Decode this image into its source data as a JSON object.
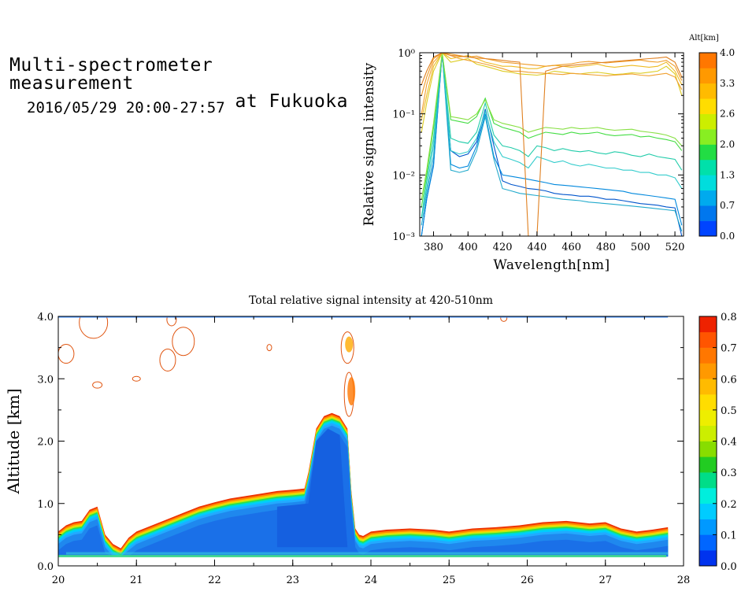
{
  "header": {
    "title_line1": "Multi-spectrometer measurement",
    "title_line2": "at Fukuoka",
    "date_range": "2016/05/29 20:00-27:57"
  },
  "chart_data": [
    {
      "type": "line",
      "xlabel": "Wavelength[nm]",
      "ylabel": "Relative signal intensity",
      "yscale": "log",
      "xlim": [
        372,
        525
      ],
      "ylim": [
        0.001,
        1
      ],
      "xticks": [
        "380",
        "400",
        "420",
        "440",
        "460",
        "480",
        "500",
        "520"
      ],
      "yticks": [
        "10⁻³",
        "10⁻²",
        "10⁻¹",
        "10⁰"
      ],
      "colorbar": {
        "label": "Alt[km]",
        "ticks": [
          "0.0",
          "0.7",
          "1.3",
          "2.0",
          "2.6",
          "3.3",
          "4.0"
        ],
        "colors": [
          "#0044ff",
          "#0077ee",
          "#00aaee",
          "#00dddd",
          "#00e0aa",
          "#22dd44",
          "#88ee22",
          "#ccee00",
          "#ffdd00",
          "#ffbb00",
          "#ff9900",
          "#ff7700"
        ]
      },
      "x": [
        373,
        376,
        380,
        385,
        390,
        395,
        400,
        405,
        410,
        415,
        420,
        425,
        430,
        435,
        440,
        445,
        450,
        455,
        460,
        465,
        470,
        475,
        480,
        485,
        490,
        495,
        500,
        505,
        510,
        515,
        520,
        524
      ],
      "series": [
        {
          "color": "#0055cc",
          "values": [
            0.001,
            0.004,
            0.015,
            1.0,
            0.025,
            0.02,
            0.022,
            0.035,
            0.12,
            0.03,
            0.008,
            0.007,
            0.0065,
            0.006,
            0.0058,
            0.0055,
            0.005,
            0.0048,
            0.0047,
            0.0045,
            0.0045,
            0.0043,
            0.004,
            0.004,
            0.0038,
            0.0036,
            0.0034,
            0.0033,
            0.0032,
            0.003,
            0.0029,
            0.001
          ]
        },
        {
          "color": "#0088dd",
          "values": [
            0.001,
            0.004,
            0.014,
            1.0,
            0.015,
            0.013,
            0.014,
            0.03,
            0.1,
            0.02,
            0.01,
            0.0095,
            0.009,
            0.0085,
            0.008,
            0.0075,
            0.007,
            0.0068,
            0.0066,
            0.0064,
            0.0062,
            0.006,
            0.0058,
            0.0056,
            0.0054,
            0.005,
            0.0048,
            0.0046,
            0.0044,
            0.0042,
            0.004,
            0.0015
          ]
        },
        {
          "color": "#22aacc",
          "values": [
            0.0015,
            0.005,
            0.02,
            1.0,
            0.012,
            0.011,
            0.012,
            0.025,
            0.09,
            0.018,
            0.006,
            0.0055,
            0.005,
            0.0048,
            0.0046,
            0.0044,
            0.0042,
            0.004,
            0.0039,
            0.0038,
            0.0036,
            0.0035,
            0.0034,
            0.0033,
            0.0032,
            0.0031,
            0.003,
            0.0029,
            0.0028,
            0.0027,
            0.0026,
            0.0012
          ]
        },
        {
          "color": "#33cccc",
          "values": [
            0.002,
            0.006,
            0.03,
            1.0,
            0.025,
            0.022,
            0.024,
            0.04,
            0.11,
            0.035,
            0.02,
            0.018,
            0.016,
            0.013,
            0.02,
            0.018,
            0.016,
            0.017,
            0.015,
            0.014,
            0.015,
            0.014,
            0.013,
            0.013,
            0.012,
            0.012,
            0.011,
            0.011,
            0.01,
            0.01,
            0.009,
            0.006
          ]
        },
        {
          "color": "#22ccaa",
          "values": [
            0.002,
            0.008,
            0.04,
            1.0,
            0.04,
            0.035,
            0.033,
            0.05,
            0.15,
            0.045,
            0.03,
            0.028,
            0.025,
            0.02,
            0.03,
            0.028,
            0.025,
            0.027,
            0.025,
            0.024,
            0.025,
            0.023,
            0.022,
            0.024,
            0.023,
            0.021,
            0.02,
            0.022,
            0.02,
            0.019,
            0.018,
            0.012
          ]
        },
        {
          "color": "#44dd44",
          "values": [
            0.003,
            0.01,
            0.06,
            1.0,
            0.08,
            0.075,
            0.07,
            0.09,
            0.18,
            0.07,
            0.06,
            0.055,
            0.05,
            0.04,
            0.045,
            0.05,
            0.048,
            0.046,
            0.05,
            0.047,
            0.048,
            0.05,
            0.046,
            0.044,
            0.045,
            0.046,
            0.042,
            0.043,
            0.04,
            0.038,
            0.035,
            0.025
          ]
        },
        {
          "color": "#88e044",
          "values": [
            0.004,
            0.012,
            0.07,
            1.0,
            0.09,
            0.085,
            0.08,
            0.1,
            0.17,
            0.08,
            0.07,
            0.065,
            0.06,
            0.05,
            0.055,
            0.06,
            0.058,
            0.056,
            0.06,
            0.057,
            0.058,
            0.06,
            0.056,
            0.054,
            0.055,
            0.056,
            0.052,
            0.05,
            0.048,
            0.045,
            0.04,
            0.03
          ]
        },
        {
          "color": "#ddcc22",
          "values": [
            0.05,
            0.15,
            0.5,
            1.0,
            0.7,
            0.75,
            0.8,
            0.65,
            0.6,
            0.55,
            0.5,
            0.48,
            0.45,
            0.44,
            0.43,
            0.45,
            0.5,
            0.48,
            0.46,
            0.45,
            0.47,
            0.48,
            0.46,
            0.44,
            0.45,
            0.47,
            0.46,
            0.48,
            0.5,
            0.6,
            0.45,
            0.2
          ]
        },
        {
          "color": "#eebb22",
          "values": [
            0.08,
            0.2,
            0.6,
            1.0,
            0.8,
            0.85,
            0.9,
            0.8,
            0.7,
            0.65,
            0.6,
            0.6,
            0.58,
            0.55,
            0.55,
            0.6,
            0.62,
            0.6,
            0.58,
            0.6,
            0.62,
            0.65,
            0.6,
            0.58,
            0.6,
            0.62,
            0.6,
            0.58,
            0.6,
            0.7,
            0.5,
            0.3
          ]
        },
        {
          "color": "#f0a030",
          "values": [
            0.1,
            0.3,
            0.7,
            1.0,
            0.9,
            0.8,
            0.75,
            0.7,
            0.65,
            0.6,
            0.55,
            0.5,
            0.5,
            0.48,
            0.47,
            0.46,
            0.45,
            0.44,
            0.46,
            0.45,
            0.44,
            0.43,
            0.42,
            0.43,
            0.44,
            0.45,
            0.43,
            0.42,
            0.44,
            0.46,
            0.4,
            0.25
          ]
        },
        {
          "color": "#ee9922",
          "values": [
            0.2,
            0.4,
            0.8,
            1.0,
            0.95,
            0.9,
            0.85,
            0.88,
            0.8,
            0.75,
            0.7,
            0.68,
            0.66,
            0.64,
            0.62,
            0.6,
            0.62,
            0.64,
            0.66,
            0.7,
            0.72,
            0.7,
            0.68,
            0.7,
            0.72,
            0.74,
            0.76,
            0.72,
            0.7,
            0.75,
            0.6,
            0.35
          ]
        },
        {
          "color": "#e08020",
          "values": [
            0.3,
            0.5,
            0.85,
            1.0,
            0.9,
            0.88,
            0.85,
            0.82,
            0.8,
            0.78,
            0.75,
            0.72,
            0.7,
            0.001,
            0.001,
            0.5,
            0.55,
            0.6,
            0.62,
            0.64,
            0.66,
            0.68,
            0.7,
            0.72,
            0.74,
            0.76,
            0.78,
            0.8,
            0.82,
            0.85,
            0.7,
            0.4
          ]
        }
      ]
    },
    {
      "type": "heatmap",
      "title": "Total relative signal intensity at 420-510nm",
      "ylabel": "Altitude [km]",
      "xlim": [
        20,
        28
      ],
      "ylim": [
        0,
        4
      ],
      "xticks": [
        "20",
        "21",
        "22",
        "23",
        "24",
        "25",
        "26",
        "27",
        "28"
      ],
      "yticks": [
        "0.0",
        "1.0",
        "2.0",
        "3.0",
        "4.0"
      ],
      "colorbar": {
        "ticks": [
          "0.0",
          "0.1",
          "0.2",
          "0.3",
          "0.4",
          "0.5",
          "0.6",
          "0.7",
          "0.8"
        ],
        "colors": [
          "#0033ee",
          "#0066ff",
          "#0099ff",
          "#00ccff",
          "#00eedd",
          "#00dd88",
          "#22cc22",
          "#88dd00",
          "#ccee00",
          "#eeee00",
          "#ffdd00",
          "#ffbb00",
          "#ff9900",
          "#ff7700",
          "#ff5500",
          "#ee2200"
        ]
      },
      "boundary": {
        "time": [
          20.0,
          20.1,
          20.2,
          20.3,
          20.4,
          20.5,
          20.6,
          20.7,
          20.8,
          20.9,
          21.0,
          21.2,
          21.4,
          21.6,
          21.8,
          22.0,
          22.2,
          22.4,
          22.6,
          22.8,
          23.0,
          23.15,
          23.2,
          23.3,
          23.4,
          23.5,
          23.6,
          23.7,
          23.75,
          23.8,
          23.85,
          23.9,
          24.0,
          24.2,
          24.5,
          24.8,
          25.0,
          25.3,
          25.6,
          25.9,
          26.2,
          26.5,
          26.8,
          27.0,
          27.2,
          27.4,
          27.6,
          27.8
        ],
        "altitude_km": [
          0.55,
          0.65,
          0.7,
          0.72,
          0.9,
          0.95,
          0.5,
          0.35,
          0.28,
          0.45,
          0.55,
          0.65,
          0.75,
          0.85,
          0.95,
          1.02,
          1.08,
          1.12,
          1.16,
          1.2,
          1.22,
          1.24,
          1.5,
          2.2,
          2.4,
          2.45,
          2.4,
          2.2,
          1.2,
          0.6,
          0.5,
          0.48,
          0.55,
          0.58,
          0.6,
          0.58,
          0.55,
          0.6,
          0.62,
          0.65,
          0.7,
          0.72,
          0.68,
          0.7,
          0.6,
          0.55,
          0.58,
          0.62
        ]
      },
      "surface_layer_km": 0.15
    }
  ]
}
